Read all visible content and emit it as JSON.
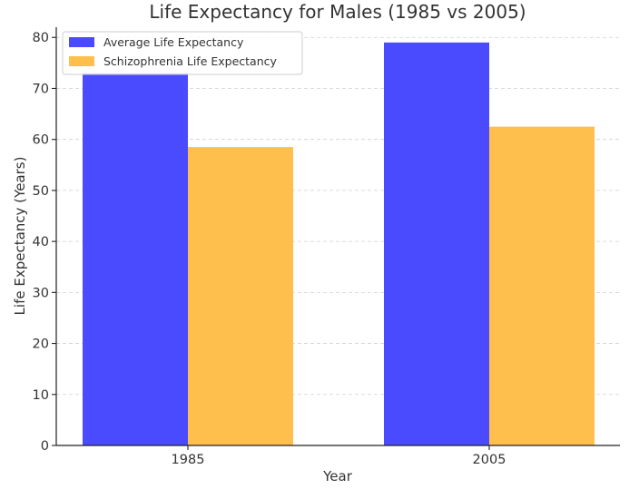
{
  "chart_data": {
    "type": "bar",
    "title": "Life Expectancy for Males (1985 vs 2005)",
    "xlabel": "Year",
    "ylabel": "Life Expectancy (Years)",
    "categories": [
      "1985",
      "2005"
    ],
    "ylim": [
      0,
      82
    ],
    "yticks": [
      0,
      10,
      20,
      30,
      40,
      50,
      60,
      70,
      80
    ],
    "grid": true,
    "legend_position": "top-left",
    "series": [
      {
        "name": "Average Life Expectancy",
        "values": [
          73,
          79
        ],
        "color": "#4a4aff"
      },
      {
        "name": "Schizophrenia Life Expectancy",
        "values": [
          58.5,
          62.5
        ],
        "color": "#ffbf4d"
      }
    ]
  }
}
